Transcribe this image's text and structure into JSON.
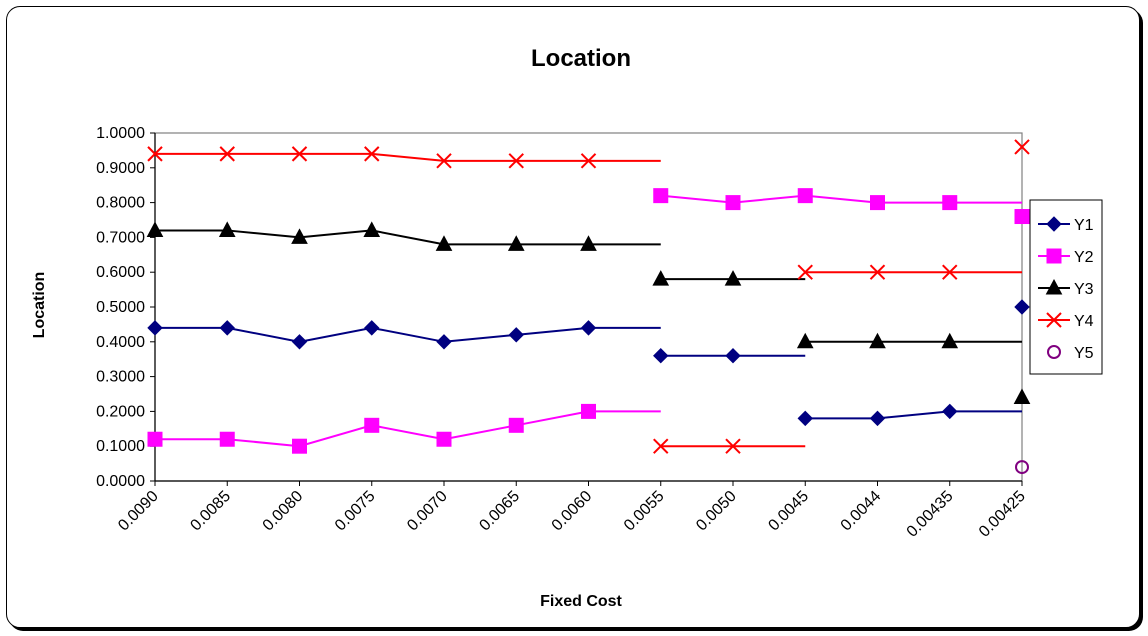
{
  "chart_data": {
    "type": "line",
    "title": "Location",
    "xlabel": "Fixed Cost",
    "ylabel": "Location",
    "categories": [
      "0.0090",
      "0.0085",
      "0.0080",
      "0.0075",
      "0.0070",
      "0.0065",
      "0.0060",
      "0.0055",
      "0.0050",
      "0.0045",
      "0.0044",
      "0.00435",
      "0.00425"
    ],
    "ylim": [
      0,
      1.0
    ],
    "yticks": [
      "0.0000",
      "0.1000",
      "0.2000",
      "0.3000",
      "0.4000",
      "0.5000",
      "0.6000",
      "0.7000",
      "0.8000",
      "0.9000",
      "1.0000"
    ],
    "grid": false,
    "legend_position": "right",
    "series": [
      {
        "name": "Y1",
        "color": "#000080",
        "marker": "diamond",
        "segments": [
          {
            "start": 0,
            "values": [
              0.44,
              0.44,
              0.4,
              0.44,
              0.4,
              0.42,
              0.44,
              0.44
            ]
          },
          {
            "start": 7,
            "values": [
              0.36,
              0.36,
              0.36
            ]
          },
          {
            "start": 9,
            "values": [
              0.18,
              0.18,
              0.2,
              0.2
            ]
          },
          {
            "start": 12,
            "values": [
              0.5
            ]
          }
        ],
        "markers": [
          [
            0,
            0.44
          ],
          [
            1,
            0.44
          ],
          [
            2,
            0.4
          ],
          [
            3,
            0.44
          ],
          [
            4,
            0.4
          ],
          [
            5,
            0.42
          ],
          [
            6,
            0.44
          ],
          [
            7,
            0.36
          ],
          [
            8,
            0.36
          ],
          [
            9,
            0.18
          ],
          [
            10,
            0.18
          ],
          [
            11,
            0.2
          ],
          [
            12,
            0.5
          ]
        ]
      },
      {
        "name": "Y2",
        "color": "#ff00ff",
        "marker": "square",
        "segments": [
          {
            "start": 0,
            "values": [
              0.12,
              0.12,
              0.1,
              0.16,
              0.12,
              0.16,
              0.2,
              0.2
            ]
          },
          {
            "start": 7,
            "values": [
              0.82,
              0.8,
              0.82,
              0.8,
              0.8,
              0.8
            ]
          }
        ],
        "markers": [
          [
            0,
            0.12
          ],
          [
            1,
            0.12
          ],
          [
            2,
            0.1
          ],
          [
            3,
            0.16
          ],
          [
            4,
            0.12
          ],
          [
            5,
            0.16
          ],
          [
            6,
            0.2
          ],
          [
            7,
            0.82
          ],
          [
            8,
            0.8
          ],
          [
            9,
            0.82
          ],
          [
            10,
            0.8
          ],
          [
            11,
            0.8
          ],
          [
            12,
            0.76
          ]
        ]
      },
      {
        "name": "Y3",
        "color": "#000000",
        "marker": "triangle",
        "segments": [
          {
            "start": 0,
            "values": [
              0.72,
              0.72,
              0.7,
              0.72,
              0.68,
              0.68,
              0.68,
              0.68
            ]
          },
          {
            "start": 7,
            "values": [
              0.58,
              0.58,
              0.58
            ]
          },
          {
            "start": 9,
            "values": [
              0.4,
              0.4,
              0.4,
              0.4
            ]
          }
        ],
        "markers": [
          [
            0,
            0.72
          ],
          [
            1,
            0.72
          ],
          [
            2,
            0.7
          ],
          [
            3,
            0.72
          ],
          [
            4,
            0.68
          ],
          [
            5,
            0.68
          ],
          [
            6,
            0.68
          ],
          [
            7,
            0.58
          ],
          [
            8,
            0.58
          ],
          [
            9,
            0.4
          ],
          [
            10,
            0.4
          ],
          [
            11,
            0.4
          ],
          [
            12,
            0.24
          ]
        ]
      },
      {
        "name": "Y4",
        "color": "#ff0000",
        "marker": "x",
        "segments": [
          {
            "start": 0,
            "values": [
              0.94,
              0.94,
              0.94,
              0.94,
              0.92,
              0.92,
              0.92,
              0.92
            ]
          },
          {
            "start": 7,
            "values": [
              0.1,
              0.1,
              0.1
            ]
          },
          {
            "start": 9,
            "values": [
              0.6,
              0.6,
              0.6,
              0.6
            ]
          }
        ],
        "markers": [
          [
            0,
            0.94
          ],
          [
            1,
            0.94
          ],
          [
            2,
            0.94
          ],
          [
            3,
            0.94
          ],
          [
            4,
            0.92
          ],
          [
            5,
            0.92
          ],
          [
            6,
            0.92
          ],
          [
            7,
            0.1
          ],
          [
            8,
            0.1
          ],
          [
            9,
            0.6
          ],
          [
            10,
            0.6
          ],
          [
            11,
            0.6
          ],
          [
            12,
            0.96
          ]
        ]
      },
      {
        "name": "Y5",
        "color": "#800080",
        "marker": "circle",
        "segments": [],
        "markers": [
          [
            12,
            0.04
          ]
        ]
      }
    ]
  }
}
